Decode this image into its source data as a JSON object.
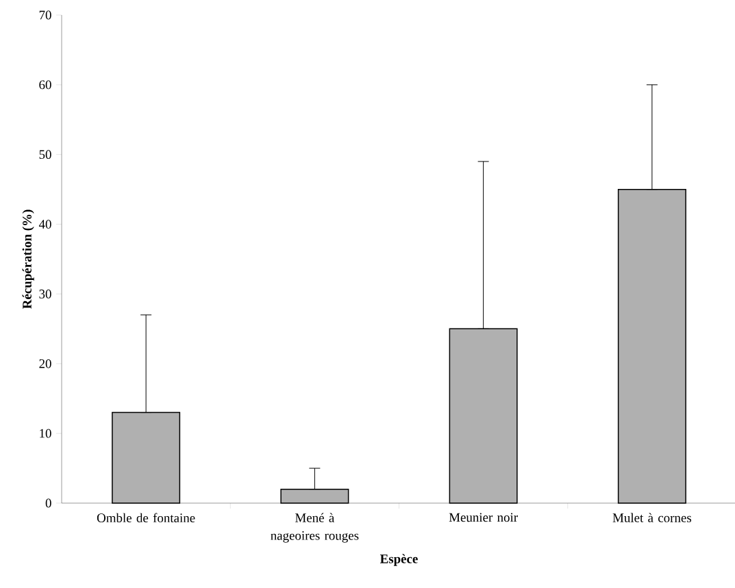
{
  "chart_data": {
    "type": "bar",
    "xlabel": "Espèce",
    "ylabel": "Récupération (%)",
    "categories": [
      "Omble de fontaine",
      "Mené à nageoires rouges",
      "Meunier noir",
      "Mulet à cornes"
    ],
    "values": [
      13,
      2,
      25,
      45
    ],
    "errors": [
      [
        13,
        27
      ],
      [
        2,
        5
      ],
      [
        25,
        49
      ],
      [
        45,
        60
      ]
    ],
    "color": "#b0b0b0",
    "ylim": [
      0,
      70
    ],
    "yticks": [
      0,
      10,
      20,
      30,
      40,
      50,
      60,
      70
    ],
    "grid": false
  }
}
